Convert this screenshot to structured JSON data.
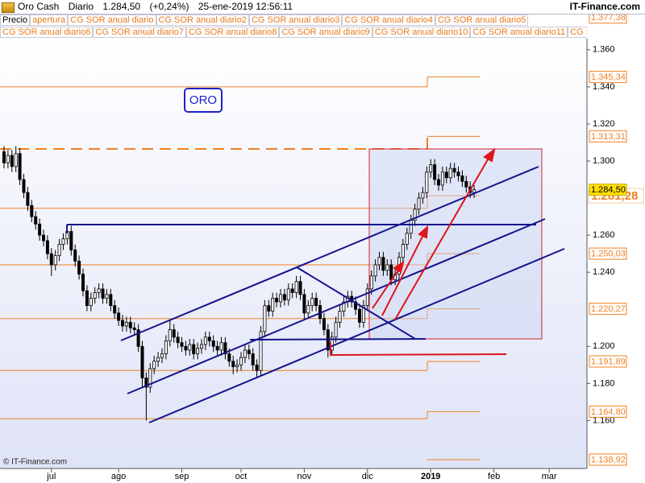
{
  "chart_data": {
    "type": "candlestick",
    "header": {
      "symbol": "Oro Cash",
      "period": "Diario",
      "price": "1.284,50",
      "change": "(+0,24%)",
      "datetime": "25-ene-2019 12:56:11",
      "site": "IT-Finance.com"
    },
    "legend": [
      [
        "Precio",
        "apertura",
        "CG SOR anual diario",
        "CG SOR anual diario2",
        "CG SOR anual diario3",
        "CG SOR anual diario4",
        "CG SOR anual diario5"
      ],
      [
        "CG SOR anual diario6",
        "CG SOR anual diario7",
        "CG SOR anual diario8",
        "CG SOR anual diario9",
        "CG SOR anual diario10",
        "CG SOR anual diario11",
        "CG SOR anu"
      ]
    ],
    "annotation": "ORO",
    "footer": "© IT-Finance.com",
    "categories": [
      null,
      null,
      null,
      null,
      null,
      null,
      null,
      null,
      null,
      null,
      null,
      null,
      "jul",
      null,
      null,
      null,
      null,
      null,
      null,
      null,
      null,
      null,
      null,
      null,
      null,
      null,
      null,
      null,
      null,
      "ago",
      null,
      null,
      null,
      null,
      null,
      null,
      null,
      null,
      null,
      null,
      null,
      null,
      null,
      null,
      null,
      "sep",
      null,
      null,
      null,
      null,
      null,
      null,
      null,
      null,
      null,
      null,
      null,
      null,
      null,
      null,
      "oct",
      null,
      null,
      null,
      null,
      null,
      null,
      null,
      null,
      null,
      null,
      null,
      null,
      null,
      null,
      null,
      "nov",
      null,
      null,
      null,
      null,
      null,
      null,
      null,
      null,
      null,
      null,
      null,
      null,
      null,
      null,
      null,
      "dic",
      null,
      null,
      null,
      null,
      null,
      null,
      null,
      null,
      null,
      null,
      null,
      null,
      null,
      null,
      null,
      "2019",
      null,
      null,
      null,
      null,
      null,
      null,
      null,
      null,
      null,
      null,
      null,
      null,
      null,
      null,
      null,
      "feb",
      null,
      null,
      null,
      null,
      null,
      null,
      null,
      null,
      null,
      null,
      null,
      null,
      null,
      "mar",
      null,
      null,
      null,
      null,
      null,
      null,
      null,
      null,
      null
    ],
    "open": [
      1305,
      1299,
      1303,
      1297,
      1304,
      1290,
      1283,
      1276,
      1270,
      1266,
      1260,
      1257,
      1250,
      1244,
      1249,
      1255,
      1258,
      1262,
      1252,
      1246,
      1239,
      1230,
      1222,
      1226,
      1229,
      1231,
      1226,
      1228,
      1222,
      1218,
      1214,
      1211,
      1213,
      1210,
      1209,
      1200,
      1183,
      1178,
      1188,
      1192,
      1194,
      1196,
      1203,
      1209,
      1205,
      1202,
      1200,
      1198,
      1201,
      1196,
      1199,
      1201,
      1205,
      1203,
      1200,
      1198,
      1202,
      1196,
      1192,
      1189,
      1190,
      1194,
      1198,
      1196,
      1190,
      1187,
      1208,
      1222,
      1219,
      1226,
      1224,
      1228,
      1225,
      1231,
      1229,
      1235,
      1228,
      1218,
      1222,
      1226,
      1222,
      1215,
      1209,
      1198,
      1205,
      1213,
      1219,
      1224,
      1227,
      1224,
      1220,
      1213,
      1222,
      1231,
      1238,
      1244,
      1248,
      1241,
      1244,
      1236,
      1239,
      1248,
      1255,
      1261,
      1268,
      1274,
      1280,
      1283,
      1294,
      1298,
      1290,
      1287,
      1294,
      1291,
      1296,
      1294,
      1292,
      1289,
      1286,
      1283,
      null,
      null,
      null,
      null,
      null,
      null,
      null,
      null,
      null,
      null,
      null,
      null,
      null,
      null,
      null,
      null,
      null,
      null,
      null,
      null,
      null,
      null,
      null,
      null,
      null,
      null,
      null,
      null
    ],
    "high": [
      1308,
      1306,
      1306,
      1308,
      1307,
      1293,
      1286,
      1279,
      1273,
      1269,
      1263,
      1260,
      1253,
      1252,
      1258,
      1261,
      1266,
      1265,
      1255,
      1249,
      1242,
      1233,
      1229,
      1232,
      1234,
      1234,
      1231,
      1231,
      1225,
      1221,
      1217,
      1216,
      1216,
      1213,
      1212,
      1203,
      1186,
      1191,
      1195,
      1197,
      1199,
      1206,
      1214,
      1212,
      1208,
      1205,
      1203,
      1204,
      1204,
      1202,
      1204,
      1208,
      1208,
      1206,
      1203,
      1205,
      1205,
      1199,
      1195,
      1193,
      1197,
      1201,
      1201,
      1199,
      1193,
      1211,
      1225,
      1225,
      1229,
      1229,
      1231,
      1231,
      1234,
      1234,
      1238,
      1238,
      1231,
      1225,
      1229,
      1229,
      1225,
      1218,
      1212,
      1208,
      1216,
      1222,
      1227,
      1230,
      1230,
      1227,
      1223,
      1225,
      1234,
      1241,
      1247,
      1251,
      1251,
      1247,
      1247,
      1242,
      1251,
      1258,
      1264,
      1271,
      1277,
      1283,
      1286,
      1297,
      1301,
      1301,
      1293,
      1297,
      1297,
      1299,
      1299,
      1297,
      1295,
      1292,
      1289,
      1287,
      null,
      null,
      null,
      null,
      null,
      null,
      null,
      null,
      null,
      null,
      null,
      null,
      null,
      null,
      null,
      null,
      null,
      null,
      null,
      null,
      null,
      null,
      null,
      null,
      null,
      null,
      null,
      null
    ],
    "low": [
      1296,
      1296,
      1294,
      1294,
      1287,
      1280,
      1273,
      1267,
      1263,
      1257,
      1254,
      1247,
      1238,
      1241,
      1246,
      1252,
      1255,
      1249,
      1243,
      1236,
      1227,
      1219,
      1219,
      1223,
      1226,
      1223,
      1223,
      1219,
      1215,
      1211,
      1208,
      1208,
      1207,
      1206,
      1197,
      1178,
      1160,
      1175,
      1185,
      1189,
      1191,
      1193,
      1200,
      1202,
      1199,
      1197,
      1195,
      1195,
      1193,
      1193,
      1196,
      1198,
      1200,
      1197,
      1195,
      1195,
      1193,
      1189,
      1185,
      1186,
      1187,
      1191,
      1193,
      1187,
      1183,
      1184,
      1205,
      1216,
      1216,
      1221,
      1221,
      1222,
      1222,
      1226,
      1226,
      1225,
      1215,
      1215,
      1219,
      1219,
      1212,
      1206,
      1194,
      1195,
      1202,
      1210,
      1216,
      1221,
      1221,
      1217,
      1210,
      1210,
      1219,
      1228,
      1235,
      1241,
      1238,
      1238,
      1233,
      1233,
      1236,
      1245,
      1252,
      1258,
      1265,
      1271,
      1277,
      1280,
      1291,
      1287,
      1284,
      1284,
      1288,
      1288,
      1291,
      1289,
      1286,
      1283,
      1280,
      1280,
      null,
      null,
      null,
      null,
      null,
      null,
      null,
      null,
      null,
      null,
      null,
      null,
      null,
      null,
      null,
      null,
      null,
      null,
      null,
      null,
      null,
      null,
      null,
      null,
      null,
      null,
      null,
      null
    ],
    "close": [
      1299,
      1303,
      1297,
      1304,
      1290,
      1283,
      1276,
      1270,
      1266,
      1260,
      1257,
      1250,
      1244,
      1249,
      1255,
      1258,
      1262,
      1252,
      1246,
      1239,
      1230,
      1222,
      1226,
      1229,
      1231,
      1226,
      1228,
      1222,
      1218,
      1214,
      1211,
      1213,
      1210,
      1209,
      1200,
      1183,
      1178,
      1188,
      1192,
      1194,
      1196,
      1203,
      1209,
      1205,
      1202,
      1200,
      1198,
      1201,
      1196,
      1199,
      1201,
      1205,
      1203,
      1200,
      1198,
      1202,
      1196,
      1192,
      1189,
      1190,
      1194,
      1198,
      1196,
      1190,
      1187,
      1208,
      1222,
      1219,
      1226,
      1224,
      1228,
      1225,
      1231,
      1229,
      1235,
      1228,
      1218,
      1222,
      1226,
      1222,
      1215,
      1209,
      1198,
      1205,
      1213,
      1219,
      1224,
      1227,
      1224,
      1220,
      1213,
      1222,
      1231,
      1238,
      1244,
      1248,
      1241,
      1244,
      1236,
      1239,
      1248,
      1255,
      1261,
      1268,
      1274,
      1280,
      1283,
      1294,
      1298,
      1290,
      1287,
      1294,
      1291,
      1296,
      1294,
      1292,
      1289,
      1286,
      1283,
      1284.5,
      null,
      null,
      null,
      null,
      null,
      null,
      null,
      null,
      null,
      null,
      null,
      null,
      null,
      null,
      null,
      null,
      null,
      null,
      null,
      null,
      null,
      null,
      null,
      null,
      null,
      null,
      null,
      null
    ],
    "up_color": "#ffffff",
    "down_color": "#000000",
    "ylim": [
      1135,
      1366
    ],
    "yticks": [
      {
        "value": 1360,
        "label": "1.360"
      },
      {
        "value": 1340,
        "label": "1.340"
      },
      {
        "value": 1320,
        "label": "1.320"
      },
      {
        "value": 1300,
        "label": "1.300"
      },
      {
        "value": 1260,
        "label": "1.260"
      },
      {
        "value": 1240,
        "label": "1.240"
      },
      {
        "value": 1200,
        "label": "1.200"
      },
      {
        "value": 1180,
        "label": "1.180"
      },
      {
        "value": 1160,
        "label": "1.160"
      }
    ],
    "grid": false,
    "level_color": "#f08020",
    "levels": [
      {
        "before": null,
        "value": 1377.38,
        "label": "1.377,38"
      },
      {
        "before": 1340,
        "value": 1345.34,
        "label": "1.345,34"
      },
      {
        "before": 1306.5,
        "value": 1313.31,
        "label": "1.313,31",
        "dashed": true
      },
      {
        "before": 1274.5,
        "value": 1281.28,
        "label": "1.281,28",
        "large": true
      },
      {
        "before": 1244,
        "value": 1250.03,
        "label": "1.250,03"
      },
      {
        "before": 1215,
        "value": 1220.27,
        "label": "1.220,27"
      },
      {
        "before": 1187,
        "value": 1191.89,
        "label": "1.191,89"
      },
      {
        "before": 1161,
        "value": 1164.8,
        "label": "1.164,80"
      },
      {
        "before": null,
        "value": 1138.92,
        "label": "1.138,92"
      }
    ],
    "last_price": {
      "value": 1284.5,
      "label": "1.284,50",
      "color": "#ffe000"
    }
  }
}
